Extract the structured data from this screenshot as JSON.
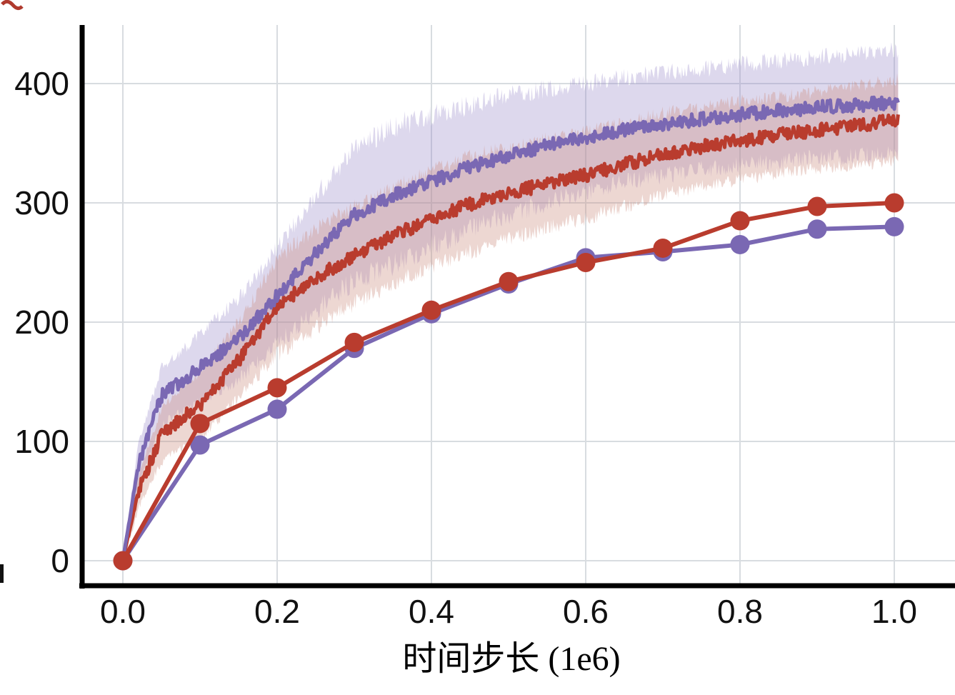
{
  "chart_data": {
    "type": "line",
    "title": "",
    "xlabel": "时间步长 (1e6)",
    "ylabel": "",
    "xlim": [
      0.0,
      1.08
    ],
    "ylim": [
      -25,
      430
    ],
    "grid": true,
    "legend": "none",
    "xticks": [
      0.0,
      0.2,
      0.4,
      0.6,
      0.8,
      1.0
    ],
    "xtick_labels": [
      "0.0",
      "0.2",
      "0.4",
      "0.6",
      "0.8",
      "1.0"
    ],
    "yticks": [
      0,
      100,
      200,
      300,
      400
    ],
    "ytick_labels": [
      "0",
      "100",
      "200",
      "300",
      "400"
    ],
    "colors": {
      "purple": "#7a68b3",
      "purple_band": "#9486c6",
      "red": "#b93c2e",
      "red_band": "#cb8d7f",
      "grid": "#d8dce0",
      "axis": "#000000"
    },
    "series": [
      {
        "id": "purple-training-curve",
        "kind": "band-line",
        "color": "#7a68b3",
        "band_color": "#9486c6",
        "band_opacity": 0.32,
        "seed": 7,
        "x": [
          0,
          0.02,
          0.05,
          0.08,
          0.1,
          0.15,
          0.2,
          0.25,
          0.3,
          0.35,
          0.4,
          0.45,
          0.5,
          0.55,
          0.6,
          0.65,
          0.7,
          0.75,
          0.8,
          0.85,
          0.9,
          0.95,
          1.0
        ],
        "y": [
          0,
          80,
          138,
          152,
          162,
          186,
          222,
          258,
          290,
          306,
          318,
          330,
          340,
          348,
          355,
          361,
          366,
          370,
          374,
          377,
          380,
          382,
          384
        ],
        "band": [
          3,
          18,
          24,
          26,
          28,
          34,
          40,
          48,
          55,
          58,
          55,
          52,
          50,
          48,
          45,
          44,
          43,
          42,
          42,
          42,
          42,
          43,
          44
        ]
      },
      {
        "id": "red-training-curve",
        "kind": "band-line",
        "color": "#b93c2e",
        "band_color": "#cb8d7f",
        "band_opacity": 0.35,
        "seed": 13,
        "x": [
          0,
          0.02,
          0.05,
          0.08,
          0.1,
          0.15,
          0.2,
          0.25,
          0.3,
          0.35,
          0.4,
          0.45,
          0.5,
          0.55,
          0.6,
          0.65,
          0.7,
          0.75,
          0.8,
          0.85,
          0.9,
          0.95,
          1.0
        ],
        "y": [
          0,
          58,
          105,
          122,
          130,
          168,
          213,
          237,
          256,
          272,
          287,
          299,
          308,
          316,
          323,
          332,
          341,
          347,
          352,
          357,
          361,
          365,
          369
        ],
        "band": [
          3,
          14,
          22,
          26,
          28,
          32,
          40,
          42,
          40,
          40,
          40,
          40,
          38,
          37,
          36,
          35,
          34,
          33,
          33,
          32,
          32,
          33,
          34
        ]
      },
      {
        "id": "purple-eval-curve",
        "kind": "marker-line",
        "color": "#7a68b3",
        "x": [
          0,
          0.1,
          0.2,
          0.3,
          0.4,
          0.5,
          0.6,
          0.7,
          0.8,
          0.9,
          1.0
        ],
        "y": [
          0,
          97,
          127,
          178,
          207,
          232,
          254,
          259,
          265,
          278,
          280
        ]
      },
      {
        "id": "red-eval-curve",
        "kind": "marker-line",
        "color": "#b93c2e",
        "x": [
          0,
          0.1,
          0.2,
          0.3,
          0.4,
          0.5,
          0.6,
          0.7,
          0.8,
          0.9,
          1.0
        ],
        "y": [
          0,
          115,
          145,
          183,
          210,
          234,
          250,
          262,
          285,
          297,
          300
        ]
      }
    ]
  },
  "decorations": {
    "corner_fragment_color": "#b03a2e",
    "edge_fragment_color": "#111111"
  }
}
